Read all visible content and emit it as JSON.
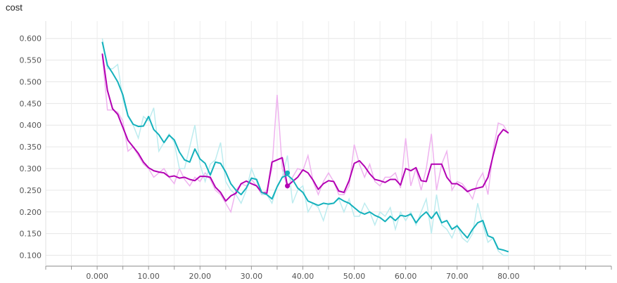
{
  "chart_data": {
    "type": "line",
    "title": "cost",
    "xlabel": "",
    "ylabel": "",
    "xlim": [
      -10,
      100
    ],
    "ylim": [
      0.075,
      0.64
    ],
    "x_ticks": [
      "0.000",
      "10.00",
      "20.00",
      "30.00",
      "40.00",
      "50.00",
      "60.00",
      "70.00",
      "80.00"
    ],
    "y_ticks": [
      "0.100",
      "0.150",
      "0.200",
      "0.250",
      "0.300",
      "0.350",
      "0.400",
      "0.450",
      "0.500",
      "0.550",
      "0.600"
    ],
    "grid": true,
    "colors": {
      "series1": "#b300b3",
      "series1_raw": "#efb3ef",
      "series2": "#14b1bc",
      "series2_raw": "#bdecef"
    },
    "series": [
      {
        "color_key": "series1",
        "x": [
          1,
          2,
          3,
          4,
          5,
          6,
          7,
          8,
          9,
          10,
          11,
          12,
          13,
          14,
          15,
          16,
          17,
          18,
          19,
          20,
          21,
          22,
          23,
          24,
          25,
          26,
          27,
          28,
          29,
          30,
          31,
          32,
          33,
          34,
          35,
          36,
          37,
          38,
          39,
          40,
          41,
          42,
          43,
          44,
          45,
          46,
          47,
          48,
          49,
          50,
          51,
          52,
          53,
          54,
          55,
          56,
          57,
          58,
          59,
          60,
          61,
          62,
          63,
          64,
          65,
          66,
          67,
          68,
          69,
          70,
          71,
          72,
          73,
          74,
          75,
          76,
          77,
          78,
          79,
          80
        ],
        "y": [
          0.565,
          0.48,
          0.438,
          0.425,
          0.395,
          0.365,
          0.35,
          0.335,
          0.315,
          0.302,
          0.295,
          0.292,
          0.29,
          0.281,
          0.283,
          0.278,
          0.28,
          0.275,
          0.272,
          0.282,
          0.282,
          0.28,
          0.257,
          0.245,
          0.225,
          0.237,
          0.243,
          0.265,
          0.271,
          0.265,
          0.26,
          0.245,
          0.243,
          0.315,
          0.32,
          0.325,
          0.26,
          0.27,
          0.28,
          0.297,
          0.29,
          0.273,
          0.252,
          0.265,
          0.272,
          0.27,
          0.248,
          0.245,
          0.272,
          0.312,
          0.318,
          0.305,
          0.288,
          0.275,
          0.272,
          0.268,
          0.275,
          0.275,
          0.262,
          0.3,
          0.295,
          0.302,
          0.272,
          0.27,
          0.31,
          0.31,
          0.31,
          0.28,
          0.265,
          0.265,
          0.258,
          0.247,
          0.252,
          0.255,
          0.258,
          0.28,
          0.33,
          0.375,
          0.39,
          0.382
        ],
        "raw": [
          0.56,
          0.435,
          0.435,
          0.43,
          0.41,
          0.34,
          0.35,
          0.33,
          0.31,
          0.3,
          0.28,
          0.29,
          0.3,
          0.28,
          0.265,
          0.3,
          0.275,
          0.26,
          0.28,
          0.27,
          0.29,
          0.275,
          0.25,
          0.24,
          0.22,
          0.2,
          0.25,
          0.265,
          0.26,
          0.275,
          0.26,
          0.24,
          0.25,
          0.3,
          0.47,
          0.3,
          0.255,
          0.28,
          0.3,
          0.295,
          0.33,
          0.27,
          0.24,
          0.27,
          0.29,
          0.27,
          0.24,
          0.24,
          0.26,
          0.355,
          0.31,
          0.28,
          0.31,
          0.27,
          0.26,
          0.28,
          0.28,
          0.29,
          0.255,
          0.37,
          0.26,
          0.3,
          0.25,
          0.3,
          0.38,
          0.25,
          0.31,
          0.34,
          0.25,
          0.27,
          0.265,
          0.25,
          0.23,
          0.27,
          0.29,
          0.24,
          0.34,
          0.405,
          0.4,
          0.38
        ]
      },
      {
        "color_key": "series2",
        "x": [
          1,
          2,
          3,
          4,
          5,
          6,
          7,
          8,
          9,
          10,
          11,
          12,
          13,
          14,
          15,
          16,
          17,
          18,
          19,
          20,
          21,
          22,
          23,
          24,
          25,
          26,
          27,
          28,
          29,
          30,
          31,
          32,
          33,
          34,
          35,
          36,
          37,
          38,
          39,
          40,
          41,
          42,
          43,
          44,
          45,
          46,
          47,
          48,
          49,
          50,
          51,
          52,
          53,
          54,
          55,
          56,
          57,
          58,
          59,
          60,
          61,
          62,
          63,
          64,
          65,
          66,
          67,
          68,
          69,
          70,
          71,
          72,
          73,
          74,
          75,
          76,
          77,
          78,
          79,
          80
        ],
        "y": [
          0.592,
          0.538,
          0.52,
          0.5,
          0.47,
          0.422,
          0.402,
          0.397,
          0.398,
          0.42,
          0.39,
          0.378,
          0.36,
          0.377,
          0.366,
          0.338,
          0.32,
          0.315,
          0.345,
          0.322,
          0.312,
          0.285,
          0.315,
          0.312,
          0.292,
          0.265,
          0.25,
          0.24,
          0.255,
          0.278,
          0.275,
          0.245,
          0.24,
          0.23,
          0.258,
          0.28,
          0.285,
          0.275,
          0.255,
          0.245,
          0.225,
          0.22,
          0.215,
          0.22,
          0.218,
          0.22,
          0.232,
          0.225,
          0.22,
          0.21,
          0.2,
          0.195,
          0.2,
          0.192,
          0.187,
          0.178,
          0.19,
          0.18,
          0.192,
          0.19,
          0.195,
          0.175,
          0.19,
          0.2,
          0.185,
          0.2,
          0.175,
          0.18,
          0.16,
          0.168,
          0.153,
          0.14,
          0.16,
          0.175,
          0.18,
          0.145,
          0.14,
          0.115,
          0.112,
          0.108
        ],
        "raw": [
          0.6,
          0.53,
          0.53,
          0.54,
          0.46,
          0.42,
          0.4,
          0.37,
          0.42,
          0.41,
          0.44,
          0.34,
          0.36,
          0.38,
          0.36,
          0.3,
          0.3,
          0.35,
          0.4,
          0.31,
          0.27,
          0.31,
          0.32,
          0.36,
          0.27,
          0.25,
          0.24,
          0.22,
          0.25,
          0.3,
          0.27,
          0.24,
          0.24,
          0.22,
          0.26,
          0.28,
          0.33,
          0.22,
          0.25,
          0.26,
          0.2,
          0.22,
          0.21,
          0.18,
          0.22,
          0.22,
          0.23,
          0.2,
          0.23,
          0.19,
          0.19,
          0.22,
          0.2,
          0.17,
          0.2,
          0.19,
          0.21,
          0.16,
          0.2,
          0.18,
          0.2,
          0.17,
          0.2,
          0.23,
          0.15,
          0.24,
          0.17,
          0.16,
          0.14,
          0.17,
          0.14,
          0.13,
          0.15,
          0.22,
          0.17,
          0.13,
          0.14,
          0.11,
          0.1,
          0.1
        ]
      }
    ],
    "markers": [
      {
        "color_key": "series2",
        "x": 37,
        "y": 0.29
      },
      {
        "color_key": "series1",
        "x": 37,
        "y": 0.26
      }
    ]
  }
}
